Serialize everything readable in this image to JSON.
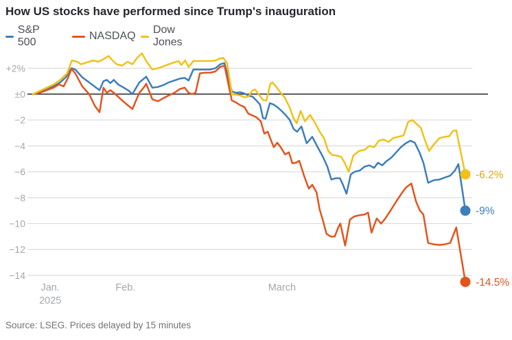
{
  "title": "How US stocks have performed since Trump's inauguration",
  "source": "Source: LSEG. Prices delayed by 15 minutes",
  "colors": {
    "sp500": "#3b7dbd",
    "nasdaq": "#e4531b",
    "dow": "#f2c116",
    "grid": "#d8d8d8",
    "zero_line": "#26262e",
    "axis_text": "#a3a7ad",
    "title_text": "#25252d",
    "legend_text": "#4c4f56",
    "source_text": "#6f7277"
  },
  "legend": {
    "items": [
      {
        "label": "S&P 500",
        "key": "sp500"
      },
      {
        "label": "NASDAQ",
        "key": "nasdaq"
      },
      {
        "label": "Dow Jones",
        "key": "dow"
      }
    ]
  },
  "chart_data": {
    "type": "line",
    "unit": "percent change since inauguration",
    "ylim": [
      -15.5,
      3.4
    ],
    "grid": true,
    "legend_position": "top-left",
    "y_ticks": [
      {
        "v": 2,
        "label": "+2%"
      },
      {
        "v": 0,
        "label": "±0"
      },
      {
        "v": -2,
        "label": "−2"
      },
      {
        "v": -4,
        "label": "−4"
      },
      {
        "v": -6,
        "label": "−6"
      },
      {
        "v": -8,
        "label": "−8"
      },
      {
        "v": -10,
        "label": "−10"
      },
      {
        "v": -12,
        "label": "−12"
      },
      {
        "v": -14,
        "label": "−14"
      }
    ],
    "x_ticks": [
      {
        "f": 0.04,
        "label": "Jan.",
        "sub": "2025"
      },
      {
        "f": 0.214,
        "label": "Feb.",
        "sub": ""
      },
      {
        "f": 0.576,
        "label": "March",
        "sub": ""
      }
    ],
    "series": [
      {
        "name": "S&P 500",
        "key": "sp500",
        "end_label": "-9%",
        "label_color": "#3b7dbd",
        "points": [
          [
            0,
            0
          ],
          [
            1.6,
            0.2
          ],
          [
            3.2,
            0.45
          ],
          [
            4.8,
            0.6
          ],
          [
            6.3,
            0.9
          ],
          [
            7.6,
            1.3
          ],
          [
            8.9,
            2.0
          ],
          [
            9.8,
            1.9
          ],
          [
            11.4,
            1.3
          ],
          [
            13,
            0.9
          ],
          [
            14.6,
            0.5
          ],
          [
            15.4,
            0.3
          ],
          [
            16.3,
            1.0
          ],
          [
            17.1,
            1.1
          ],
          [
            17.9,
            0.85
          ],
          [
            18.7,
            1.1
          ],
          [
            19.7,
            0.75
          ],
          [
            21,
            0.5
          ],
          [
            22.2,
            0.25
          ],
          [
            23,
            0
          ],
          [
            24.6,
            0.9
          ],
          [
            26.2,
            1.35
          ],
          [
            27.6,
            0.5
          ],
          [
            28.9,
            0.55
          ],
          [
            30.2,
            0.7
          ],
          [
            31.4,
            0.9
          ],
          [
            32.7,
            1.05
          ],
          [
            34,
            1.2
          ],
          [
            35.1,
            1.25
          ],
          [
            36,
            1.05
          ],
          [
            37.1,
            1.9
          ],
          [
            38.4,
            1.9
          ],
          [
            39.7,
            1.9
          ],
          [
            41,
            1.9
          ],
          [
            42.2,
            2.0
          ],
          [
            43.3,
            2.3
          ],
          [
            44.3,
            2.4
          ],
          [
            46,
            0.2
          ],
          [
            47,
            0.1
          ],
          [
            47.9,
            0.15
          ],
          [
            48.9,
            0.05
          ],
          [
            49.8,
            -0.1
          ],
          [
            50.8,
            -0.2
          ],
          [
            51.7,
            -0.5
          ],
          [
            52.5,
            -0.8
          ],
          [
            53.2,
            -1.85
          ],
          [
            53.8,
            -1.9
          ],
          [
            54.8,
            -0.7
          ],
          [
            55.6,
            -0.8
          ],
          [
            56.5,
            -1.0
          ],
          [
            57.5,
            -1.3
          ],
          [
            58.4,
            -1.6
          ],
          [
            59.4,
            -2.0
          ],
          [
            60.3,
            -2.7
          ],
          [
            61.1,
            -2.9
          ],
          [
            62.1,
            -2.5
          ],
          [
            63.3,
            -3.8
          ],
          [
            64.6,
            -3.3
          ],
          [
            65.7,
            -4.0
          ],
          [
            67,
            -4.8
          ],
          [
            68.1,
            -5.6
          ],
          [
            69,
            -6.6
          ],
          [
            70,
            -6.5
          ],
          [
            71,
            -6.5
          ],
          [
            71.7,
            -7.0
          ],
          [
            72.5,
            -7.7
          ],
          [
            73.5,
            -6.2
          ],
          [
            74.4,
            -6.0
          ],
          [
            75.6,
            -5.9
          ],
          [
            76.7,
            -5.6
          ],
          [
            77.8,
            -5.5
          ],
          [
            78.9,
            -5.7
          ],
          [
            79.8,
            -5.3
          ],
          [
            80.8,
            -5.5
          ],
          [
            81.7,
            -5.2
          ],
          [
            82.9,
            -4.9
          ],
          [
            84,
            -4.5
          ],
          [
            85.1,
            -4.1
          ],
          [
            86.2,
            -3.8
          ],
          [
            87.3,
            -3.6
          ],
          [
            88.3,
            -3.75
          ],
          [
            89.4,
            -4.5
          ],
          [
            90.3,
            -5.3
          ],
          [
            91.4,
            -6.85
          ],
          [
            92.7,
            -6.65
          ],
          [
            94,
            -6.6
          ],
          [
            95.2,
            -6.45
          ],
          [
            96.5,
            -6.3
          ],
          [
            97.6,
            -5.9
          ],
          [
            98.4,
            -5.4
          ],
          [
            100,
            -9.0
          ]
        ]
      },
      {
        "name": "NASDAQ",
        "key": "nasdaq",
        "end_label": "-14.5%",
        "label_color": "#e4531b",
        "points": [
          [
            0,
            0
          ],
          [
            1.6,
            0.1
          ],
          [
            3.2,
            0.3
          ],
          [
            4.8,
            0.5
          ],
          [
            6,
            0.75
          ],
          [
            7.1,
            0.6
          ],
          [
            8.1,
            1.25
          ],
          [
            8.9,
            1.95
          ],
          [
            9.8,
            1.6
          ],
          [
            11.4,
            0.6
          ],
          [
            13,
            0
          ],
          [
            14.3,
            -0.9
          ],
          [
            15.4,
            -1.4
          ],
          [
            16.3,
            0.5
          ],
          [
            17.1,
            0.1
          ],
          [
            17.9,
            0.3
          ],
          [
            18.7,
            0.1
          ],
          [
            19.7,
            -0.2
          ],
          [
            21,
            -0.6
          ],
          [
            22.1,
            -0.9
          ],
          [
            23,
            -1.15
          ],
          [
            24.6,
            0.1
          ],
          [
            25.6,
            0.5
          ],
          [
            26.2,
            0.8
          ],
          [
            27.6,
            -0.4
          ],
          [
            28.9,
            -0.55
          ],
          [
            30.2,
            -0.3
          ],
          [
            31.4,
            -0.1
          ],
          [
            32.7,
            0.1
          ],
          [
            34,
            0.4
          ],
          [
            35.1,
            0.5
          ],
          [
            36,
            0.1
          ],
          [
            36.8,
            0
          ],
          [
            37.6,
            0.1
          ],
          [
            38.6,
            1.6
          ],
          [
            39.7,
            1.65
          ],
          [
            41,
            1.65
          ],
          [
            42.2,
            1.75
          ],
          [
            43.3,
            2.1
          ],
          [
            44.3,
            2.2
          ],
          [
            46,
            -0.5
          ],
          [
            47,
            -0.65
          ],
          [
            47.9,
            -0.85
          ],
          [
            48.9,
            -1.0
          ],
          [
            49.8,
            -1.5
          ],
          [
            50.8,
            -1.65
          ],
          [
            51.7,
            -1.8
          ],
          [
            52.7,
            -2.1
          ],
          [
            53.5,
            -3.05
          ],
          [
            54.3,
            -2.9
          ],
          [
            55.1,
            -3.6
          ],
          [
            55.7,
            -4.1
          ],
          [
            56.5,
            -3.75
          ],
          [
            57.3,
            -4.1
          ],
          [
            58.3,
            -4.65
          ],
          [
            59.2,
            -4.5
          ],
          [
            60,
            -5.35
          ],
          [
            60.8,
            -5.3
          ],
          [
            61.6,
            -5.15
          ],
          [
            62.7,
            -6.3
          ],
          [
            63.8,
            -7.3
          ],
          [
            64.6,
            -7.0
          ],
          [
            65.6,
            -7.6
          ],
          [
            66.3,
            -8.9
          ],
          [
            67.1,
            -9.8
          ],
          [
            67.9,
            -10.8
          ],
          [
            68.9,
            -11.0
          ],
          [
            69.8,
            -11.0
          ],
          [
            70.6,
            -10.3
          ],
          [
            71.1,
            -10.0
          ],
          [
            72.2,
            -11.7
          ],
          [
            73.3,
            -9.7
          ],
          [
            74.3,
            -9.45
          ],
          [
            75.6,
            -9.35
          ],
          [
            76.7,
            -9.3
          ],
          [
            77.5,
            -9.15
          ],
          [
            78.3,
            -10.7
          ],
          [
            79.5,
            -9.6
          ],
          [
            80.5,
            -10.0
          ],
          [
            81.4,
            -9.65
          ],
          [
            82.7,
            -9.0
          ],
          [
            84,
            -8.3
          ],
          [
            85.2,
            -7.7
          ],
          [
            86.3,
            -7.2
          ],
          [
            87.5,
            -6.9
          ],
          [
            88.6,
            -8.3
          ],
          [
            89.5,
            -9.0
          ],
          [
            90.3,
            -9.3
          ],
          [
            91.4,
            -11.5
          ],
          [
            92.7,
            -11.6
          ],
          [
            94,
            -11.65
          ],
          [
            95.2,
            -11.6
          ],
          [
            96.5,
            -11.5
          ],
          [
            97.9,
            -10.3
          ],
          [
            100,
            -14.5
          ]
        ]
      },
      {
        "name": "Dow Jones",
        "key": "dow",
        "end_label": "-6.2%",
        "label_color": "#e2a70e",
        "points": [
          [
            0,
            0
          ],
          [
            1.6,
            0.25
          ],
          [
            3.2,
            0.5
          ],
          [
            4.8,
            0.75
          ],
          [
            6.3,
            1.1
          ],
          [
            7.9,
            1.6
          ],
          [
            9,
            2.6
          ],
          [
            10.2,
            2.5
          ],
          [
            11.1,
            2.3
          ],
          [
            12.5,
            2.45
          ],
          [
            14,
            2.6
          ],
          [
            15.1,
            2.5
          ],
          [
            16.3,
            2.7
          ],
          [
            17.5,
            2.95
          ],
          [
            18.4,
            2.6
          ],
          [
            19.4,
            2.3
          ],
          [
            20.6,
            2.2
          ],
          [
            21.9,
            2.5
          ],
          [
            23,
            2.3
          ],
          [
            24.1,
            2.8
          ],
          [
            25.2,
            3.15
          ],
          [
            26.3,
            2.5
          ],
          [
            27.6,
            1.9
          ],
          [
            28.9,
            2.0
          ],
          [
            30.2,
            2.15
          ],
          [
            31.4,
            2.3
          ],
          [
            32.7,
            2.45
          ],
          [
            33.7,
            2.55
          ],
          [
            34.3,
            2.25
          ],
          [
            35.2,
            2.6
          ],
          [
            36,
            2.1
          ],
          [
            37.1,
            2.55
          ],
          [
            38.4,
            2.55
          ],
          [
            39.7,
            2.55
          ],
          [
            41,
            2.55
          ],
          [
            42.2,
            2.6
          ],
          [
            43.2,
            2.75
          ],
          [
            44,
            2.8
          ],
          [
            44.9,
            2.4
          ],
          [
            46,
            0
          ],
          [
            47,
            -0.05
          ],
          [
            47.9,
            -0.1
          ],
          [
            48.9,
            -0.25
          ],
          [
            49.8,
            -0.2
          ],
          [
            50.8,
            0.3
          ],
          [
            51.4,
            0.35
          ],
          [
            52.4,
            -0.1
          ],
          [
            53.2,
            -0.45
          ],
          [
            54,
            -0.5
          ],
          [
            54.9,
            0.8
          ],
          [
            55.4,
            0.9
          ],
          [
            56.3,
            0.55
          ],
          [
            57.3,
            0.1
          ],
          [
            58.3,
            -0.3
          ],
          [
            59.4,
            -1.05
          ],
          [
            60.3,
            -1.9
          ],
          [
            61,
            -2.25
          ],
          [
            61.9,
            -1.3
          ],
          [
            62.9,
            -2.1
          ],
          [
            64.1,
            -1.6
          ],
          [
            65.2,
            -2.2
          ],
          [
            66.3,
            -2.9
          ],
          [
            67.3,
            -3.4
          ],
          [
            68.3,
            -4.4
          ],
          [
            69.2,
            -4.7
          ],
          [
            70.3,
            -4.75
          ],
          [
            71.3,
            -4.85
          ],
          [
            72.1,
            -5.3
          ],
          [
            73,
            -6.0
          ],
          [
            74.1,
            -4.75
          ],
          [
            75.4,
            -4.4
          ],
          [
            76.7,
            -4.3
          ],
          [
            77.8,
            -4.0
          ],
          [
            78.9,
            -4.1
          ],
          [
            80,
            -3.6
          ],
          [
            81.1,
            -3.5
          ],
          [
            82.2,
            -3.7
          ],
          [
            83.3,
            -3.4
          ],
          [
            84.4,
            -3.3
          ],
          [
            85.7,
            -3.2
          ],
          [
            86.8,
            -2.15
          ],
          [
            87.8,
            -2.0
          ],
          [
            88.7,
            -2.3
          ],
          [
            89.7,
            -2.6
          ],
          [
            90.6,
            -3.5
          ],
          [
            91.6,
            -4.4
          ],
          [
            92.7,
            -3.9
          ],
          [
            94,
            -3.4
          ],
          [
            95.2,
            -3.3
          ],
          [
            96.3,
            -3.25
          ],
          [
            97.1,
            -2.85
          ],
          [
            97.9,
            -2.8
          ],
          [
            100,
            -6.2
          ]
        ]
      }
    ]
  }
}
